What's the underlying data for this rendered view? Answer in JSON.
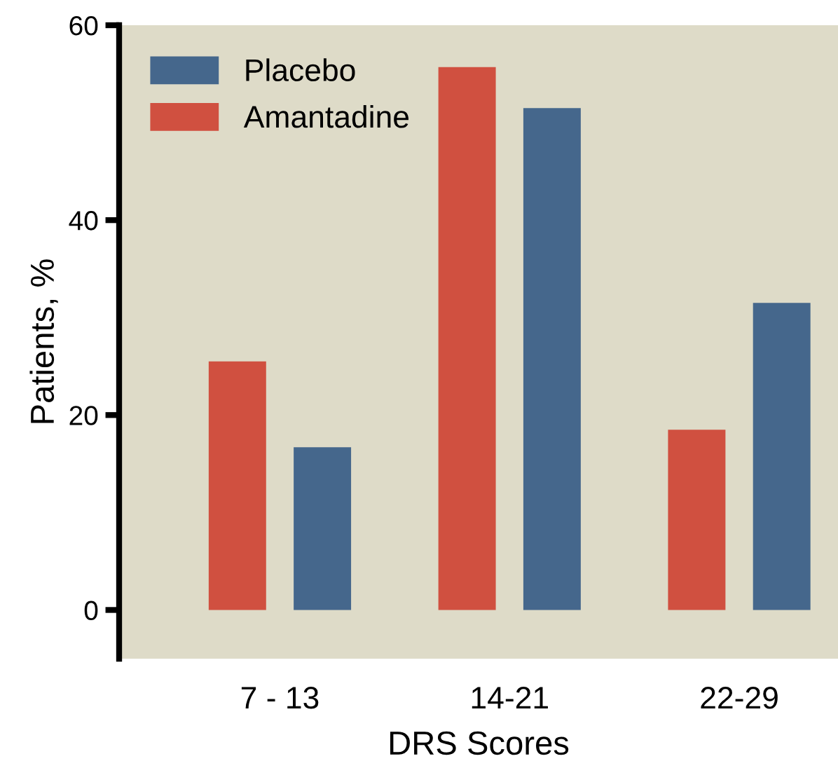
{
  "chart_data": {
    "type": "bar",
    "xlabel": "DRS Scores",
    "ylabel": "Patients, %",
    "categories": [
      "7 - 13",
      "14-21",
      "22-29"
    ],
    "series": [
      {
        "name": "Amantadine",
        "color": "#d05040",
        "values": [
          25.5,
          55.7,
          18.5
        ]
      },
      {
        "name": "Placebo",
        "color": "#45678c",
        "values": [
          16.7,
          51.5,
          31.5
        ]
      }
    ],
    "ylim": [
      -5,
      60
    ],
    "yticks": [
      0,
      20,
      40,
      60
    ],
    "grid": false,
    "legend": "top left"
  }
}
